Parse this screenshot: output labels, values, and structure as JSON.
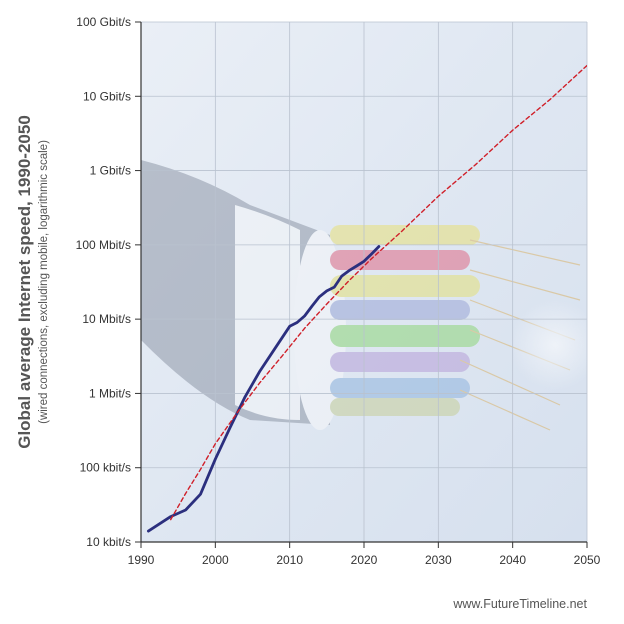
{
  "chart_data": {
    "type": "line",
    "title": "Global average Internet speed, 1990-2050",
    "subtitle": "(wired connections, excluding mobile, logarithmic scale)",
    "credit": "www.FutureTimeline.net",
    "x_ticks": [
      "1990",
      "2000",
      "2010",
      "2020",
      "2030",
      "2040",
      "2050"
    ],
    "y_ticks": [
      "100 Gbit/s",
      "10 Gbit/s",
      "1 Gbit/s",
      "100 Mbit/s",
      "10 Mbit/s",
      "1 Mbit/s",
      "100 kbit/s",
      "10 kbit/s"
    ],
    "y_tick_values_kbps": [
      100000000,
      10000000,
      1000000,
      100000,
      10000,
      1000,
      100,
      10
    ],
    "xlim": [
      1990,
      2050
    ],
    "ylim_kbps": [
      10,
      100000000
    ],
    "y_scale": "log",
    "grid": true,
    "series": [
      {
        "color": "#2b2f7e",
        "style": "solid",
        "x": [
          1991,
          1994,
          1996,
          1998,
          2000,
          2002,
          2004,
          2006,
          2008,
          2010,
          2011,
          2012,
          2013,
          2014,
          2015,
          2016,
          2017,
          2018,
          2019,
          2020,
          2021,
          2022
        ],
        "y_kbps": [
          14,
          22,
          27,
          44,
          130,
          350,
          900,
          2000,
          4000,
          8000,
          9000,
          11000,
          15000,
          20000,
          24000,
          27000,
          38000,
          45000,
          52000,
          60000,
          75000,
          95000
        ]
      },
      {
        "color": "#d0202a",
        "style": "dashed",
        "x": [
          1994,
          1996,
          1998,
          2000,
          2003,
          2006,
          2009,
          2012,
          2015,
          2018,
          2021,
          2025,
          2030,
          2035,
          2040,
          2045,
          2050
        ],
        "y_kbps": [
          20,
          45,
          95,
          210,
          560,
          1400,
          3200,
          7500,
          16000,
          33000,
          65000,
          150000,
          450000,
          1200000,
          3500000,
          9000000,
          26000000
        ]
      }
    ]
  }
}
